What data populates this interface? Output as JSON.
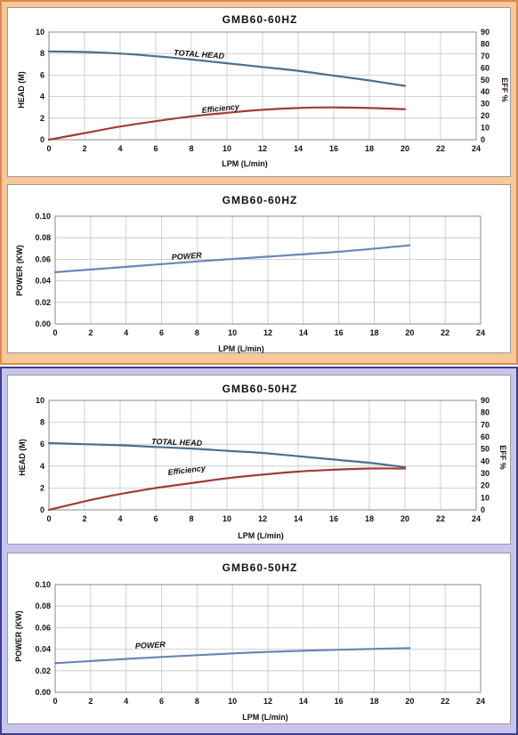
{
  "colors": {
    "panel_60hz_bg": "#f8c79a",
    "panel_50hz_bg": "#c9c3ee",
    "head_line": "#4d6f8a",
    "efficiency_line": "#a33a3a",
    "power_line": "#6a86b8"
  },
  "chart_data": [
    {
      "id": "c1",
      "type": "line",
      "title": "GMB60-60HZ",
      "xlabel": "LPM (L/min)",
      "ylabel": "HEAD (M)",
      "y2label": "EFF %",
      "xlim": [
        0,
        24
      ],
      "ylim": [
        0,
        10
      ],
      "y2lim": [
        0,
        90
      ],
      "xticks": [
        "0",
        "2",
        "4",
        "6",
        "8",
        "10",
        "12",
        "14",
        "16",
        "18",
        "20",
        "22",
        "24"
      ],
      "yticks": [
        "0",
        "2",
        "4",
        "6",
        "8",
        "10"
      ],
      "y2ticks": [
        "0",
        "10",
        "20",
        "30",
        "40",
        "50",
        "60",
        "70",
        "80",
        "90"
      ],
      "grid": true,
      "series": [
        {
          "name": "TOTAL HEAD",
          "axis": "left",
          "color": "#4d6f8a",
          "x": [
            0,
            2,
            4,
            6,
            8,
            10,
            12,
            14,
            16,
            18,
            20
          ],
          "y": [
            8.2,
            8.15,
            8.0,
            7.75,
            7.45,
            7.1,
            6.75,
            6.4,
            5.95,
            5.5,
            5.0
          ]
        },
        {
          "name": "Efficiency",
          "axis": "right",
          "color": "#a33a3a",
          "x": [
            0,
            2,
            4,
            6,
            8,
            10,
            12,
            14,
            16,
            18,
            20
          ],
          "y": [
            0,
            5.5,
            11,
            15.5,
            19.5,
            22.5,
            25,
            26.5,
            27,
            26.5,
            25.5
          ]
        }
      ]
    },
    {
      "id": "c2",
      "type": "line",
      "title": "GMB60-60HZ",
      "xlabel": "LPM  (L/min)",
      "ylabel": "POWER (KW)",
      "xlim": [
        0,
        24
      ],
      "ylim": [
        0,
        0.1
      ],
      "xticks": [
        "0",
        "2",
        "4",
        "6",
        "8",
        "10",
        "12",
        "14",
        "16",
        "18",
        "20",
        "22",
        "24"
      ],
      "yticks": [
        "0.00",
        "0.02",
        "0.04",
        "0.06",
        "0.08",
        "0.10"
      ],
      "grid": true,
      "series": [
        {
          "name": "POWER",
          "axis": "left",
          "color": "#6a86b8",
          "x": [
            0,
            4,
            8,
            12,
            16,
            20
          ],
          "y": [
            0.048,
            0.053,
            0.058,
            0.0625,
            0.067,
            0.073
          ]
        }
      ]
    },
    {
      "id": "c3",
      "type": "line",
      "title": "GMB60-50HZ",
      "xlabel": "LPM (L/min)",
      "ylabel": "HEAD (M)",
      "y2label": "EFF %",
      "xlim": [
        0,
        24
      ],
      "ylim": [
        0,
        10
      ],
      "y2lim": [
        0,
        90
      ],
      "xticks": [
        "0",
        "2",
        "4",
        "6",
        "8",
        "10",
        "12",
        "14",
        "16",
        "18",
        "20",
        "22",
        "24"
      ],
      "yticks": [
        "0",
        "2",
        "4",
        "6",
        "8",
        "10"
      ],
      "y2ticks": [
        "0",
        "10",
        "20",
        "30",
        "40",
        "50",
        "60",
        "70",
        "80",
        "90"
      ],
      "grid": true,
      "series": [
        {
          "name": "TOTAL HEAD",
          "axis": "left",
          "color": "#4d6f8a",
          "x": [
            0,
            2,
            4,
            6,
            8,
            10,
            12,
            14,
            16,
            18,
            20
          ],
          "y": [
            6.1,
            6.0,
            5.9,
            5.75,
            5.6,
            5.4,
            5.2,
            4.9,
            4.6,
            4.3,
            3.9
          ]
        },
        {
          "name": "Efficiency",
          "axis": "right",
          "color": "#a33a3a",
          "x": [
            0,
            2,
            4,
            6,
            8,
            10,
            12,
            14,
            16,
            18,
            20
          ],
          "y": [
            0,
            7,
            13,
            18,
            22,
            26,
            29,
            31.5,
            33,
            34,
            34
          ]
        }
      ]
    },
    {
      "id": "c4",
      "type": "line",
      "title": "GMB60-50HZ",
      "xlabel": "LPM  (L/min)",
      "ylabel": "POWER (KW)",
      "xlim": [
        0,
        24
      ],
      "ylim": [
        0,
        0.1
      ],
      "xticks": [
        "0",
        "2",
        "4",
        "6",
        "8",
        "10",
        "12",
        "14",
        "16",
        "18",
        "20",
        "22",
        "24"
      ],
      "yticks": [
        "0.00",
        "0.02",
        "0.04",
        "0.06",
        "0.08",
        "0.10"
      ],
      "grid": true,
      "series": [
        {
          "name": "POWER",
          "axis": "left",
          "color": "#6a86b8",
          "x": [
            0,
            4,
            8,
            12,
            16,
            20
          ],
          "y": [
            0.027,
            0.031,
            0.0345,
            0.0375,
            0.0395,
            0.041
          ]
        }
      ]
    }
  ]
}
